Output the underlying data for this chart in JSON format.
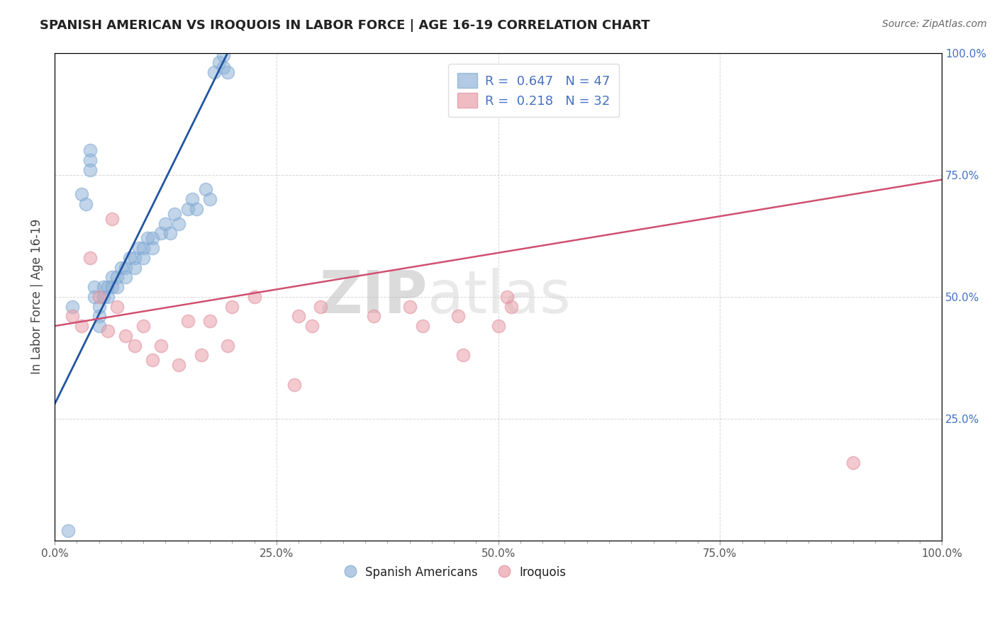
{
  "title": "SPANISH AMERICAN VS IROQUOIS IN LABOR FORCE | AGE 16-19 CORRELATION CHART",
  "source": "Source: ZipAtlas.com",
  "ylabel": "In Labor Force | Age 16-19",
  "blue_label": "Spanish Americans",
  "pink_label": "Iroquois",
  "blue_R": 0.647,
  "blue_N": 47,
  "pink_R": 0.218,
  "pink_N": 32,
  "blue_dot_color": "#92B4D8",
  "pink_dot_color": "#E8A0A8",
  "blue_edge_color": "#7DA8D4",
  "pink_edge_color": "#E090A0",
  "blue_line_color": "#2255A0",
  "pink_line_color": "#D05070",
  "legend_text_color": "#4472C4",
  "blue_scatter_x": [
    0.02,
    0.03,
    0.035,
    0.04,
    0.04,
    0.04,
    0.045,
    0.045,
    0.05,
    0.05,
    0.05,
    0.055,
    0.055,
    0.06,
    0.06,
    0.065,
    0.065,
    0.07,
    0.07,
    0.075,
    0.08,
    0.08,
    0.085,
    0.09,
    0.09,
    0.095,
    0.1,
    0.1,
    0.105,
    0.11,
    0.11,
    0.12,
    0.125,
    0.13,
    0.135,
    0.14,
    0.15,
    0.155,
    0.16,
    0.17,
    0.175,
    0.18,
    0.185,
    0.19,
    0.195,
    0.19,
    0.015
  ],
  "blue_scatter_y": [
    0.48,
    0.71,
    0.69,
    0.8,
    0.78,
    0.76,
    0.52,
    0.5,
    0.48,
    0.46,
    0.44,
    0.52,
    0.5,
    0.52,
    0.5,
    0.54,
    0.52,
    0.54,
    0.52,
    0.56,
    0.56,
    0.54,
    0.58,
    0.58,
    0.56,
    0.6,
    0.6,
    0.58,
    0.62,
    0.62,
    0.6,
    0.63,
    0.65,
    0.63,
    0.67,
    0.65,
    0.68,
    0.7,
    0.68,
    0.72,
    0.7,
    0.96,
    0.98,
    0.97,
    0.96,
    0.995,
    0.02
  ],
  "pink_scatter_x": [
    0.02,
    0.03,
    0.04,
    0.05,
    0.06,
    0.065,
    0.07,
    0.08,
    0.09,
    0.1,
    0.11,
    0.12,
    0.14,
    0.15,
    0.165,
    0.175,
    0.195,
    0.2,
    0.225,
    0.27,
    0.275,
    0.29,
    0.3,
    0.36,
    0.4,
    0.415,
    0.455,
    0.46,
    0.5,
    0.51,
    0.515,
    0.9
  ],
  "pink_scatter_y": [
    0.46,
    0.44,
    0.58,
    0.5,
    0.43,
    0.66,
    0.48,
    0.42,
    0.4,
    0.44,
    0.37,
    0.4,
    0.36,
    0.45,
    0.38,
    0.45,
    0.4,
    0.48,
    0.5,
    0.32,
    0.46,
    0.44,
    0.48,
    0.46,
    0.48,
    0.44,
    0.46,
    0.38,
    0.44,
    0.5,
    0.48,
    0.16
  ],
  "blue_line_x0": 0.0,
  "blue_line_y0": 0.28,
  "blue_line_x1": 0.195,
  "blue_line_y1": 1.0,
  "pink_line_x0": 0.0,
  "pink_line_y0": 0.44,
  "pink_line_x1": 1.0,
  "pink_line_y1": 0.74,
  "xlim": [
    0.0,
    1.0
  ],
  "ylim": [
    0.0,
    1.0
  ],
  "background_color": "#FFFFFF",
  "grid_color": "#CCCCCC",
  "zip_color": "#AAAAAA",
  "atlas_color": "#CCCCCC"
}
